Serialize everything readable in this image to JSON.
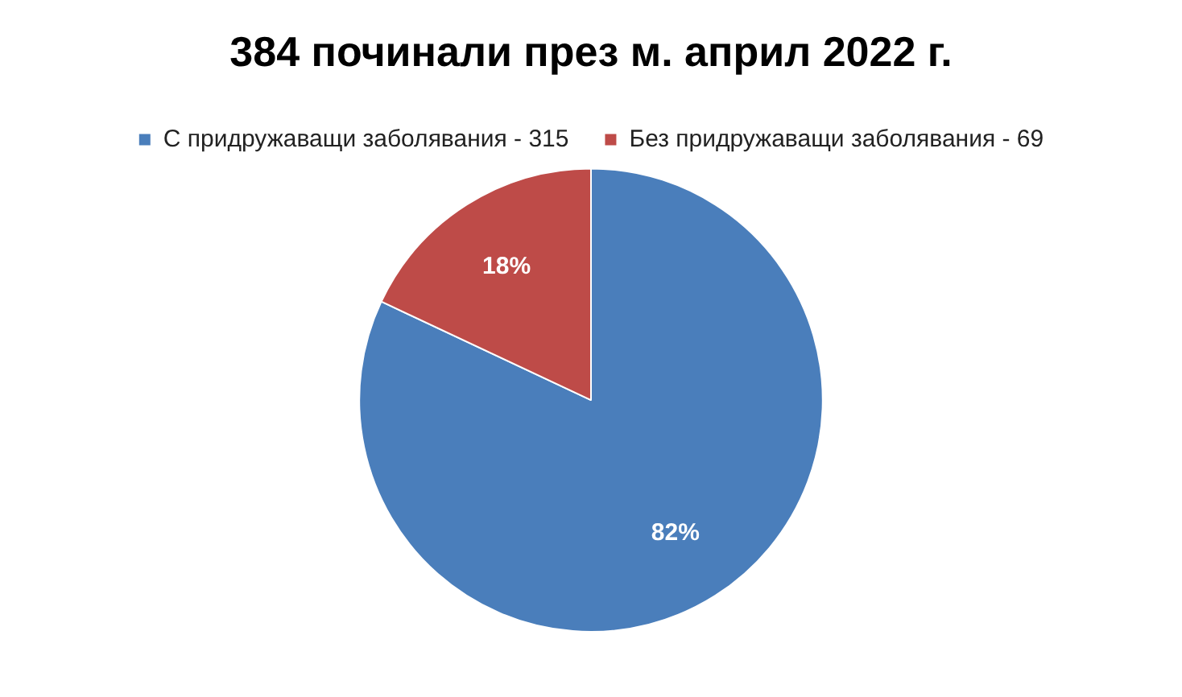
{
  "chart_data": {
    "type": "pie",
    "title": "384 починали през м. април 2022 г.",
    "categories": [
      "С придружаващи заболявания - 315",
      "Без придружаващи заболявания - 69"
    ],
    "values": [
      82,
      18
    ],
    "value_labels": [
      "82%",
      "18%"
    ],
    "colors": [
      "#4a7ebb",
      "#be4b48"
    ],
    "legend": "top"
  }
}
